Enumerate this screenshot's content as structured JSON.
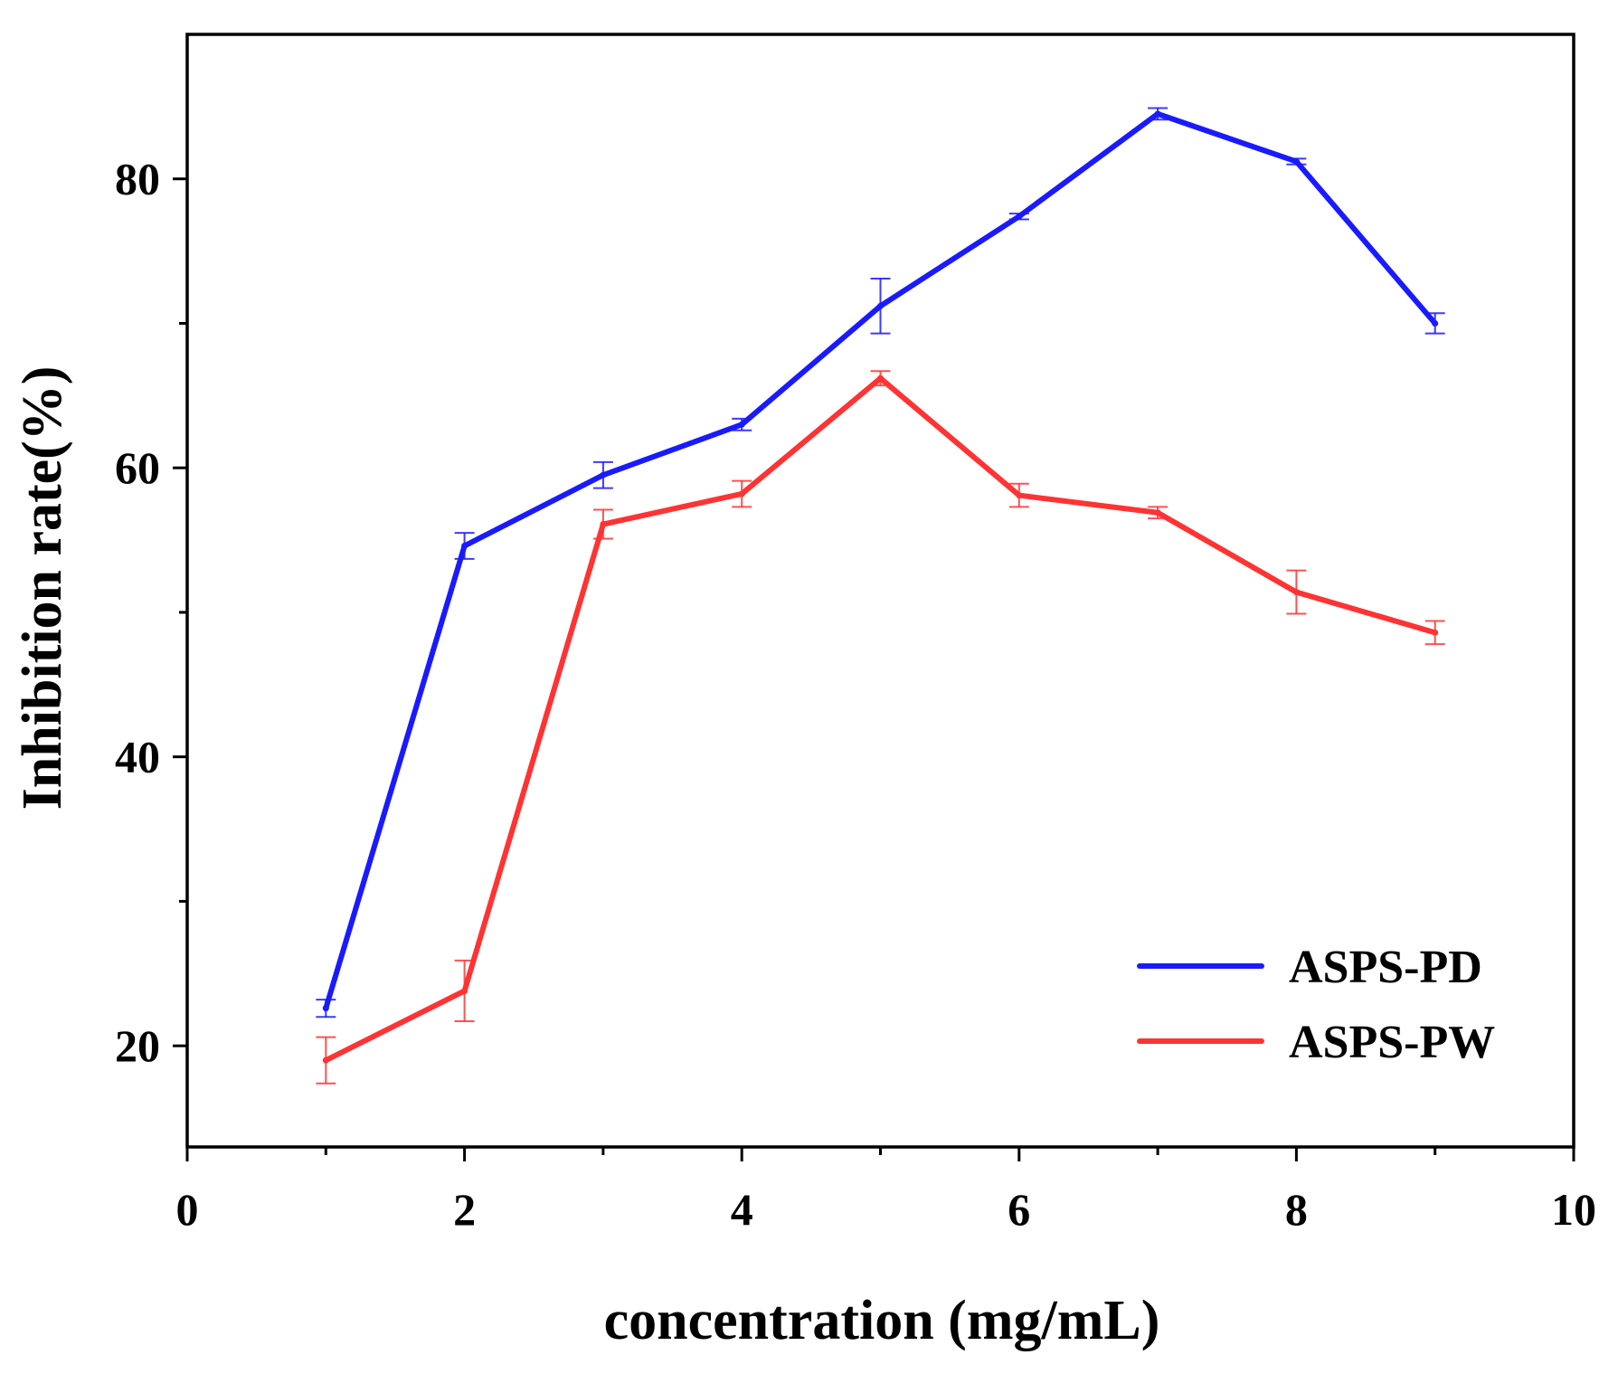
{
  "chart_data": {
    "type": "line",
    "title": "",
    "xlabel": "concentration (mg/mL)",
    "ylabel": "Inhibition rate(%)",
    "xlim": [
      0,
      10
    ],
    "ylim": [
      13,
      90
    ],
    "x_ticks": [
      0,
      2,
      4,
      6,
      8,
      10
    ],
    "x_tick_labels": [
      "0",
      "2",
      "4",
      "6",
      "8",
      "10"
    ],
    "y_ticks": [
      20,
      40,
      60,
      80
    ],
    "y_tick_labels": [
      "20",
      "40",
      "60",
      "80"
    ],
    "x_minor_ticks": [
      1,
      3,
      5,
      7,
      9
    ],
    "y_minor_ticks": [
      30,
      50,
      70
    ],
    "grid": false,
    "legend_position": "bottom-right",
    "x": [
      1,
      2,
      3,
      4,
      5,
      6,
      7,
      8,
      9
    ],
    "series": [
      {
        "name": "ASPS-PD",
        "color": "#1a1aff",
        "values": [
          22.6,
          54.6,
          59.5,
          63.0,
          71.2,
          77.4,
          84.5,
          81.2,
          70.0
        ],
        "errors": [
          0.6,
          0.9,
          0.9,
          0.4,
          1.9,
          0.2,
          0.4,
          0.2,
          0.7
        ]
      },
      {
        "name": "ASPS-PW",
        "color": "#ff3333",
        "values": [
          19.0,
          23.8,
          56.1,
          58.2,
          66.2,
          58.1,
          56.9,
          51.4,
          48.6
        ],
        "errors": [
          1.6,
          2.1,
          1.0,
          0.9,
          0.5,
          0.8,
          0.4,
          1.5,
          0.8
        ]
      }
    ]
  }
}
